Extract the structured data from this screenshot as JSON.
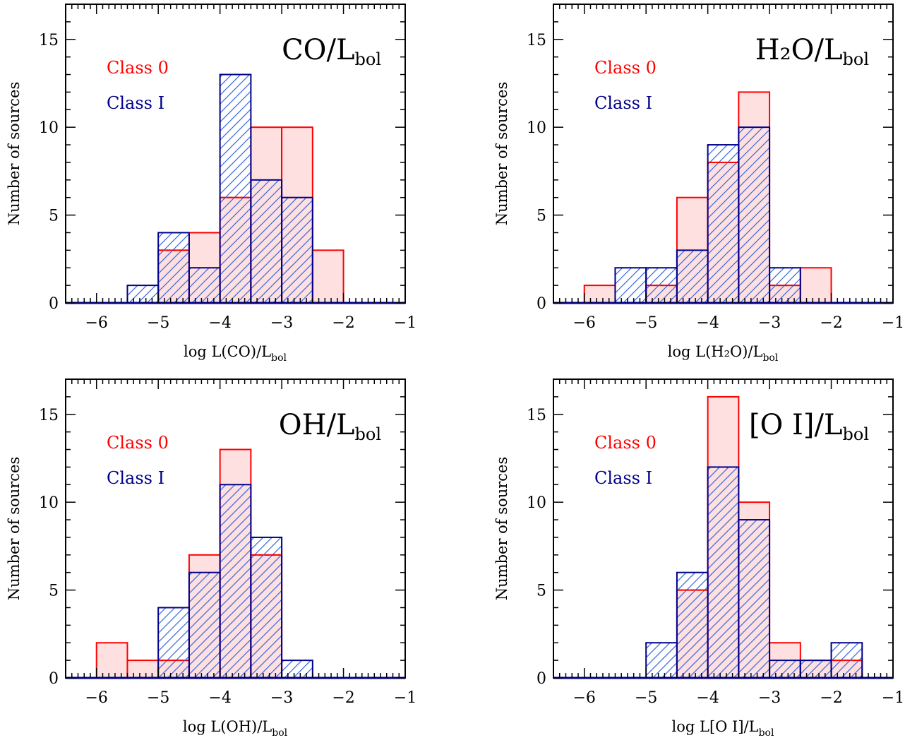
{
  "colors": {
    "class0": "#ff0000",
    "class0_fill": "#ffe0e0",
    "class1": "#00008b",
    "class1_hatch": "#3366dd",
    "axis": "#000000"
  },
  "chart_data": [
    {
      "type": "bar",
      "title": {
        "main": "CO/L",
        "sub": "bol"
      },
      "xlabel": {
        "prefix": "log L(CO)/L",
        "sub": "bol"
      },
      "ylabel": "Number of sources",
      "xlim": [
        -6.5,
        -1
      ],
      "ylim": [
        0,
        17
      ],
      "xticks": [
        -6,
        -5,
        -4,
        -3,
        -2,
        -1
      ],
      "xtick_labels": [
        "−6",
        "−5",
        "−4",
        "−3",
        "−2",
        "−1"
      ],
      "yticks": [
        0,
        5,
        10,
        15
      ],
      "ytick_labels": [
        "0",
        "5",
        "10",
        "15"
      ],
      "bin_edges": [
        -6.0,
        -5.5,
        -5.0,
        -4.5,
        -4.0,
        -3.5,
        -3.0,
        -2.5,
        -2.0,
        -1.5
      ],
      "series": [
        {
          "name": "Class 0",
          "values": [
            0,
            0,
            3,
            4,
            6,
            10,
            10,
            3,
            0
          ]
        },
        {
          "name": "Class I",
          "values": [
            0,
            1,
            4,
            2,
            13,
            7,
            6,
            0,
            0
          ]
        }
      ]
    },
    {
      "type": "bar",
      "title": {
        "main": "H₂O/L",
        "sub": "bol"
      },
      "xlabel": {
        "prefix": "log L(H₂O)/L",
        "sub": "bol"
      },
      "ylabel": "Number of sources",
      "xlim": [
        -6.5,
        -1
      ],
      "ylim": [
        0,
        17
      ],
      "xticks": [
        -6,
        -5,
        -4,
        -3,
        -2,
        -1
      ],
      "xtick_labels": [
        "−6",
        "−5",
        "−4",
        "−3",
        "−2",
        "−1"
      ],
      "yticks": [
        0,
        5,
        10,
        15
      ],
      "ytick_labels": [
        "0",
        "5",
        "10",
        "15"
      ],
      "bin_edges": [
        -6.0,
        -5.5,
        -5.0,
        -4.5,
        -4.0,
        -3.5,
        -3.0,
        -2.5,
        -2.0,
        -1.5
      ],
      "series": [
        {
          "name": "Class 0",
          "values": [
            1,
            0,
            1,
            6,
            8,
            12,
            1,
            2,
            0
          ]
        },
        {
          "name": "Class I",
          "values": [
            0,
            2,
            2,
            3,
            9,
            10,
            2,
            0,
            0
          ]
        }
      ]
    },
    {
      "type": "bar",
      "title": {
        "main": "OH/L",
        "sub": "bol"
      },
      "xlabel": {
        "prefix": "log L(OH)/L",
        "sub": "bol"
      },
      "ylabel": "Number of sources",
      "xlim": [
        -6.5,
        -1
      ],
      "ylim": [
        0,
        17
      ],
      "xticks": [
        -6,
        -5,
        -4,
        -3,
        -2,
        -1
      ],
      "xtick_labels": [
        "−6",
        "−5",
        "−4",
        "−3",
        "−2",
        "−1"
      ],
      "yticks": [
        0,
        5,
        10,
        15
      ],
      "ytick_labels": [
        "0",
        "5",
        "10",
        "15"
      ],
      "bin_edges": [
        -6.0,
        -5.5,
        -5.0,
        -4.5,
        -4.0,
        -3.5,
        -3.0,
        -2.5,
        -2.0,
        -1.5
      ],
      "series": [
        {
          "name": "Class 0",
          "values": [
            2,
            1,
            1,
            7,
            13,
            7,
            0,
            0,
            0
          ]
        },
        {
          "name": "Class I",
          "values": [
            0,
            0,
            4,
            6,
            11,
            8,
            1,
            0,
            0
          ]
        }
      ]
    },
    {
      "type": "bar",
      "title": {
        "main": "[O I]/L",
        "sub": "bol"
      },
      "xlabel": {
        "prefix": "log L[O I]/L",
        "sub": "bol"
      },
      "ylabel": "Number of sources",
      "xlim": [
        -6.5,
        -1
      ],
      "ylim": [
        0,
        17
      ],
      "xticks": [
        -6,
        -5,
        -4,
        -3,
        -2,
        -1
      ],
      "xtick_labels": [
        "−6",
        "−5",
        "−4",
        "−3",
        "−2",
        "−1"
      ],
      "yticks": [
        0,
        5,
        10,
        15
      ],
      "ytick_labels": [
        "0",
        "5",
        "10",
        "15"
      ],
      "bin_edges": [
        -6.0,
        -5.5,
        -5.0,
        -4.5,
        -4.0,
        -3.5,
        -3.0,
        -2.5,
        -2.0,
        -1.5
      ],
      "series": [
        {
          "name": "Class 0",
          "values": [
            0,
            0,
            0,
            5,
            16,
            10,
            2,
            1,
            1
          ]
        },
        {
          "name": "Class I",
          "values": [
            0,
            0,
            2,
            6,
            12,
            9,
            1,
            1,
            2
          ]
        }
      ]
    }
  ]
}
